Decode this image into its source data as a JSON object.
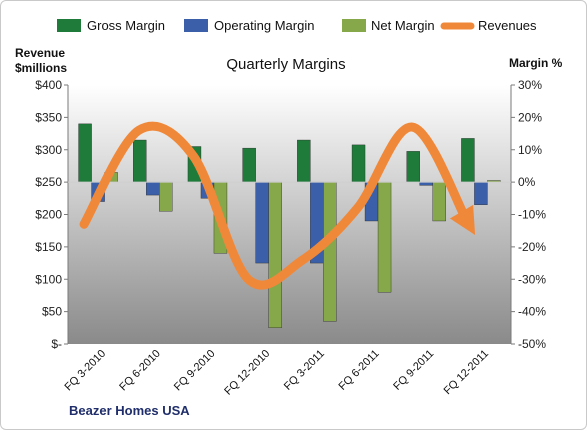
{
  "chart_data": {
    "type": "bar",
    "title": "Quarterly Margins",
    "footer": "Beazer Homes USA",
    "categories": [
      "FQ 3-2010",
      "FQ 6-2010",
      "FQ 9-2010",
      "FQ 12-2010",
      "FQ 3-2011",
      "FQ 6-2011",
      "FQ 9-2011",
      "FQ 12-2011"
    ],
    "left_axis": {
      "title_line1": "Revenue",
      "title_line2": "$millions",
      "ticks": [
        "$-",
        "$50",
        "$100",
        "$150",
        "$200",
        "$250",
        "$300",
        "$350",
        "$400"
      ],
      "range": [
        0,
        400
      ]
    },
    "right_axis": {
      "title": "Margin %",
      "ticks": [
        "-50%",
        "-40%",
        "-30%",
        "-20%",
        "-10%",
        "0%",
        "10%",
        "20%",
        "30%"
      ],
      "range": [
        -50,
        30
      ]
    },
    "series": [
      {
        "name": "Gross Margin",
        "axis": "right",
        "kind": "bar",
        "color": "#1e7b3a",
        "values": [
          18,
          13,
          11,
          10.5,
          13,
          11.5,
          9.5,
          13.5
        ]
      },
      {
        "name": "Operating Margin",
        "axis": "right",
        "kind": "bar",
        "color": "#3b5fa8",
        "values": [
          -6,
          -4,
          -5,
          -25,
          -25,
          -12,
          -1,
          -7
        ]
      },
      {
        "name": "Net Margin",
        "axis": "right",
        "kind": "bar",
        "color": "#86a84a",
        "values": [
          3,
          -9,
          -22,
          -45,
          -43,
          -34,
          -12,
          0.5
        ]
      },
      {
        "name": "Revenues",
        "axis": "left",
        "kind": "line",
        "color": "#f0883a",
        "values": [
          185,
          330,
          290,
          100,
          130,
          210,
          335,
          190
        ]
      }
    ],
    "legend_position": "top",
    "grid": false
  }
}
